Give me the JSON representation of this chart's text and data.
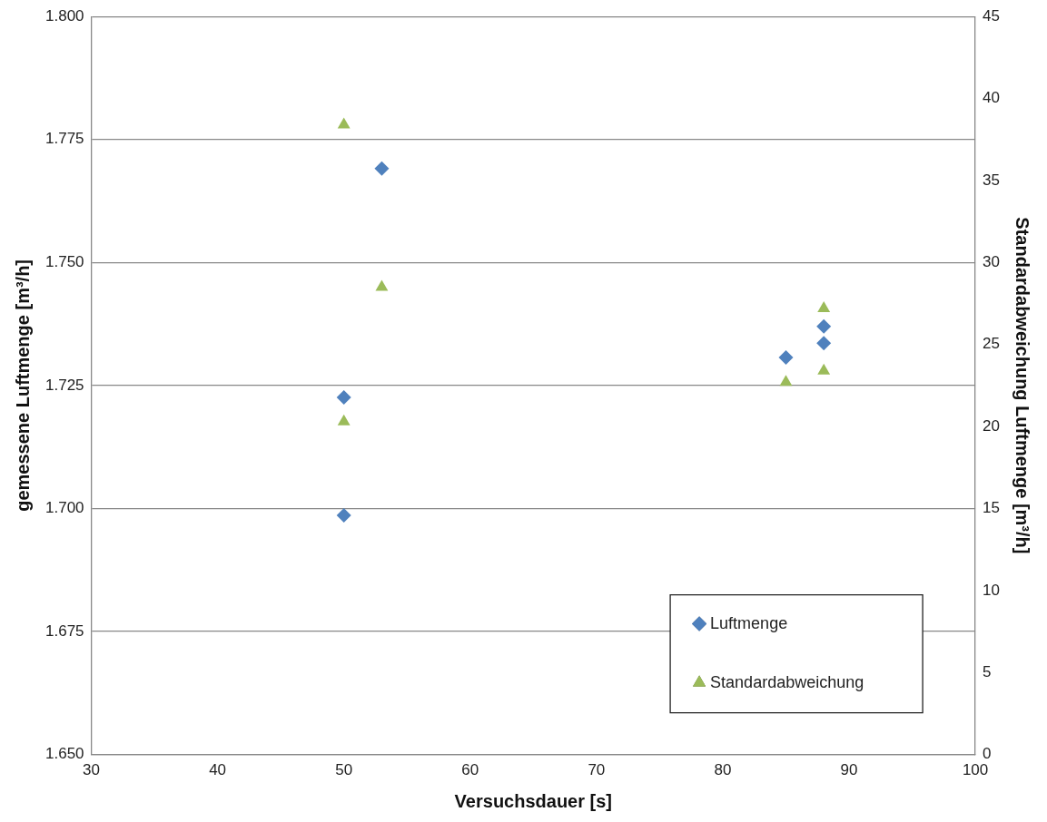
{
  "chart_data": {
    "type": "scatter",
    "xlabel": "Versuchsdauer [s]",
    "ylabel": "gemessene Luftmenge [m³/h]",
    "y2label": "Standardabweichung Luftmenge [m³/h]",
    "xlim": [
      30,
      100
    ],
    "xticks": [
      30,
      40,
      50,
      60,
      70,
      80,
      90,
      100
    ],
    "ylim": [
      1.65,
      1.8
    ],
    "yticks": [
      {
        "value": 1.65,
        "label": "1.650"
      },
      {
        "value": 1.675,
        "label": "1.675"
      },
      {
        "value": 1.7,
        "label": "1.700"
      },
      {
        "value": 1.725,
        "label": "1.725"
      },
      {
        "value": 1.75,
        "label": "1.750"
      },
      {
        "value": 1.775,
        "label": "1.775"
      },
      {
        "value": 1.8,
        "label": "1.800"
      }
    ],
    "y2lim": [
      0,
      45
    ],
    "y2ticks": [
      0,
      5,
      10,
      15,
      20,
      25,
      30,
      35,
      40,
      45
    ],
    "grid": "y",
    "legend": "bottom right",
    "series": [
      {
        "name": "Luftmenge",
        "color": "#4f81bd",
        "marker": "diamond",
        "x": [
          50,
          50,
          53,
          85,
          88,
          88
        ],
        "values": [
          1.6986,
          1.7226,
          1.7691,
          1.7307,
          1.7336,
          1.737
        ]
      },
      {
        "name": "Standardabweichung",
        "color": "#9bbb59",
        "marker": "triangle",
        "axis": "y2",
        "x": [
          50,
          53,
          50,
          85,
          88,
          88
        ],
        "values": [
          38.4,
          28.5,
          20.3,
          22.7,
          23.4,
          27.2
        ]
      }
    ]
  }
}
